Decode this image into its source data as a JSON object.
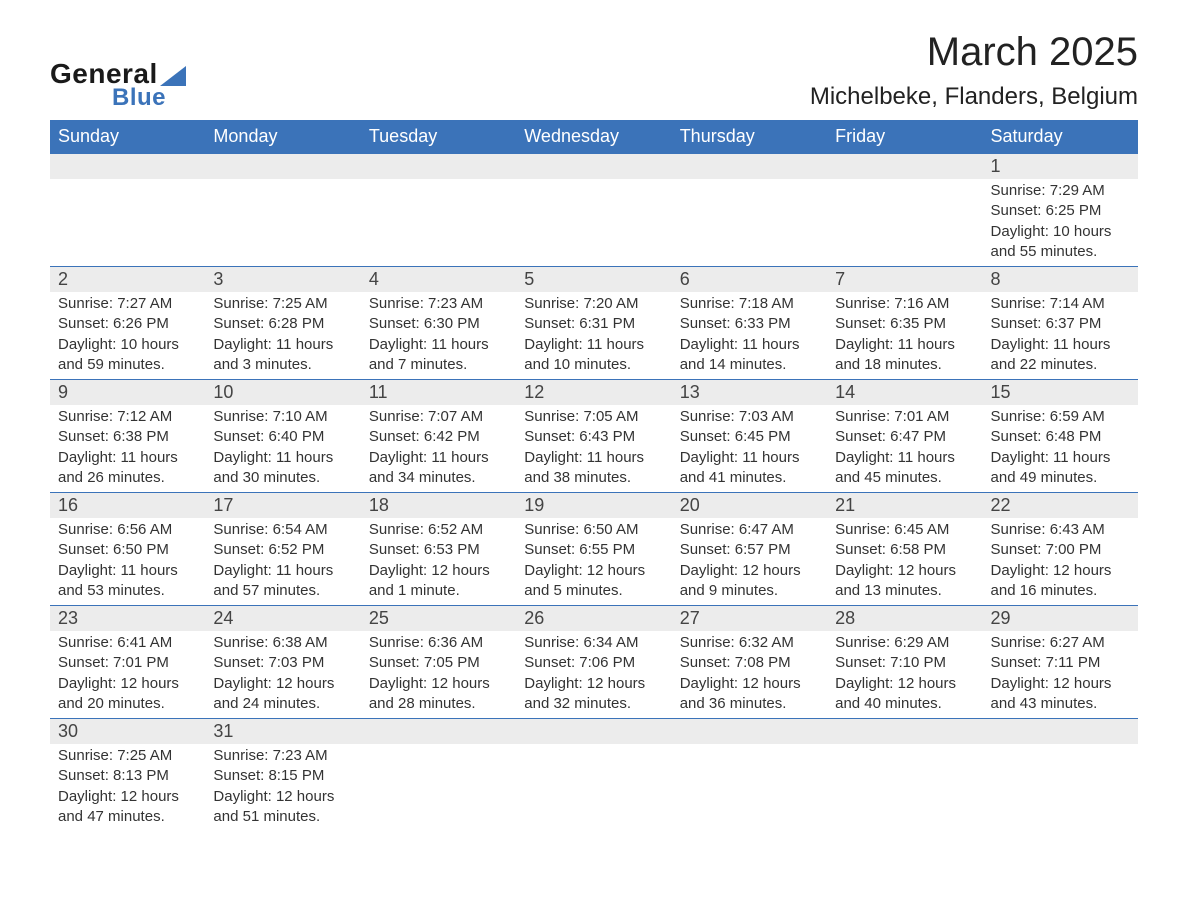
{
  "brand": {
    "line1": "General",
    "line2": "Blue"
  },
  "title": "March 2025",
  "location": "Michelbeke, Flanders, Belgium",
  "colors": {
    "header_bg": "#3b73b9",
    "header_text": "#ffffff",
    "daynum_bg": "#ececec",
    "row_divider": "#3b73b9",
    "body_text": "#333333",
    "title_text": "#222222",
    "page_bg": "#ffffff"
  },
  "fonts": {
    "title_size_pt": 30,
    "location_size_pt": 18,
    "header_size_pt": 14,
    "cell_size_pt": 11
  },
  "weekdays": [
    "Sunday",
    "Monday",
    "Tuesday",
    "Wednesday",
    "Thursday",
    "Friday",
    "Saturday"
  ],
  "labels": {
    "sunrise": "Sunrise:",
    "sunset": "Sunset:",
    "daylight": "Daylight:"
  },
  "start_weekday_index": 6,
  "days": [
    {
      "n": 1,
      "sunrise": "7:29 AM",
      "sunset": "6:25 PM",
      "daylight": "10 hours and 55 minutes."
    },
    {
      "n": 2,
      "sunrise": "7:27 AM",
      "sunset": "6:26 PM",
      "daylight": "10 hours and 59 minutes."
    },
    {
      "n": 3,
      "sunrise": "7:25 AM",
      "sunset": "6:28 PM",
      "daylight": "11 hours and 3 minutes."
    },
    {
      "n": 4,
      "sunrise": "7:23 AM",
      "sunset": "6:30 PM",
      "daylight": "11 hours and 7 minutes."
    },
    {
      "n": 5,
      "sunrise": "7:20 AM",
      "sunset": "6:31 PM",
      "daylight": "11 hours and 10 minutes."
    },
    {
      "n": 6,
      "sunrise": "7:18 AM",
      "sunset": "6:33 PM",
      "daylight": "11 hours and 14 minutes."
    },
    {
      "n": 7,
      "sunrise": "7:16 AM",
      "sunset": "6:35 PM",
      "daylight": "11 hours and 18 minutes."
    },
    {
      "n": 8,
      "sunrise": "7:14 AM",
      "sunset": "6:37 PM",
      "daylight": "11 hours and 22 minutes."
    },
    {
      "n": 9,
      "sunrise": "7:12 AM",
      "sunset": "6:38 PM",
      "daylight": "11 hours and 26 minutes."
    },
    {
      "n": 10,
      "sunrise": "7:10 AM",
      "sunset": "6:40 PM",
      "daylight": "11 hours and 30 minutes."
    },
    {
      "n": 11,
      "sunrise": "7:07 AM",
      "sunset": "6:42 PM",
      "daylight": "11 hours and 34 minutes."
    },
    {
      "n": 12,
      "sunrise": "7:05 AM",
      "sunset": "6:43 PM",
      "daylight": "11 hours and 38 minutes."
    },
    {
      "n": 13,
      "sunrise": "7:03 AM",
      "sunset": "6:45 PM",
      "daylight": "11 hours and 41 minutes."
    },
    {
      "n": 14,
      "sunrise": "7:01 AM",
      "sunset": "6:47 PM",
      "daylight": "11 hours and 45 minutes."
    },
    {
      "n": 15,
      "sunrise": "6:59 AM",
      "sunset": "6:48 PM",
      "daylight": "11 hours and 49 minutes."
    },
    {
      "n": 16,
      "sunrise": "6:56 AM",
      "sunset": "6:50 PM",
      "daylight": "11 hours and 53 minutes."
    },
    {
      "n": 17,
      "sunrise": "6:54 AM",
      "sunset": "6:52 PM",
      "daylight": "11 hours and 57 minutes."
    },
    {
      "n": 18,
      "sunrise": "6:52 AM",
      "sunset": "6:53 PM",
      "daylight": "12 hours and 1 minute."
    },
    {
      "n": 19,
      "sunrise": "6:50 AM",
      "sunset": "6:55 PM",
      "daylight": "12 hours and 5 minutes."
    },
    {
      "n": 20,
      "sunrise": "6:47 AM",
      "sunset": "6:57 PM",
      "daylight": "12 hours and 9 minutes."
    },
    {
      "n": 21,
      "sunrise": "6:45 AM",
      "sunset": "6:58 PM",
      "daylight": "12 hours and 13 minutes."
    },
    {
      "n": 22,
      "sunrise": "6:43 AM",
      "sunset": "7:00 PM",
      "daylight": "12 hours and 16 minutes."
    },
    {
      "n": 23,
      "sunrise": "6:41 AM",
      "sunset": "7:01 PM",
      "daylight": "12 hours and 20 minutes."
    },
    {
      "n": 24,
      "sunrise": "6:38 AM",
      "sunset": "7:03 PM",
      "daylight": "12 hours and 24 minutes."
    },
    {
      "n": 25,
      "sunrise": "6:36 AM",
      "sunset": "7:05 PM",
      "daylight": "12 hours and 28 minutes."
    },
    {
      "n": 26,
      "sunrise": "6:34 AM",
      "sunset": "7:06 PM",
      "daylight": "12 hours and 32 minutes."
    },
    {
      "n": 27,
      "sunrise": "6:32 AM",
      "sunset": "7:08 PM",
      "daylight": "12 hours and 36 minutes."
    },
    {
      "n": 28,
      "sunrise": "6:29 AM",
      "sunset": "7:10 PM",
      "daylight": "12 hours and 40 minutes."
    },
    {
      "n": 29,
      "sunrise": "6:27 AM",
      "sunset": "7:11 PM",
      "daylight": "12 hours and 43 minutes."
    },
    {
      "n": 30,
      "sunrise": "7:25 AM",
      "sunset": "8:13 PM",
      "daylight": "12 hours and 47 minutes."
    },
    {
      "n": 31,
      "sunrise": "7:23 AM",
      "sunset": "8:15 PM",
      "daylight": "12 hours and 51 minutes."
    }
  ]
}
